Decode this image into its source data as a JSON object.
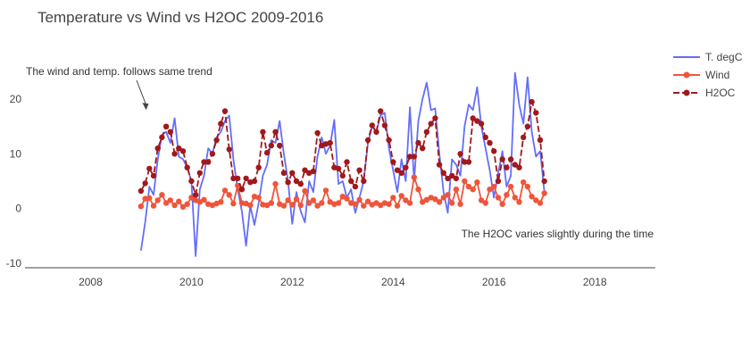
{
  "chart_data": {
    "type": "line",
    "title": "Temperature vs Wind vs H2OC 2009-2016",
    "xlabel": "",
    "ylabel": "",
    "xlim": [
      2006.7,
      2019.2
    ],
    "ylim": [
      -10.5,
      28
    ],
    "x_ticks": [
      2008,
      2010,
      2012,
      2014,
      2016,
      2018
    ],
    "y_ticks": [
      -10,
      0,
      10,
      20
    ],
    "grid": false,
    "legend": "right",
    "x_start": 2009,
    "x_step": 0.08333,
    "annotations": [
      {
        "text": "The wind and temp. follows same trend",
        "x": 2009.1,
        "y": 18.0,
        "arrow": true
      },
      {
        "text": "The H2OC varies slightly during the time",
        "x": 2016.0,
        "y": -5.3,
        "arrow": false
      }
    ],
    "series": [
      {
        "name": "T. degC",
        "color": "#636efa",
        "mode": "lines",
        "values": [
          -7.7,
          -2.5,
          4.0,
          2.5,
          9.0,
          13.5,
          14.0,
          12.0,
          16.5,
          9.5,
          9.0,
          7.5,
          5.0,
          -8.7,
          3.5,
          6.0,
          11.0,
          10.0,
          13.0,
          14.0,
          16.0,
          17.0,
          9.0,
          3.5,
          -0.5,
          -6.8,
          0.5,
          -3.0,
          1.0,
          6.0,
          8.0,
          12.5,
          12.0,
          16.0,
          10.0,
          5.0,
          -2.8,
          3.0,
          -0.5,
          -2.5,
          5.0,
          3.0,
          9.5,
          13.0,
          10.0,
          11.5,
          16.2,
          4.5,
          5.0,
          2.0,
          3.5,
          -0.8,
          2.0,
          5.0,
          12.0,
          15.0,
          14.0,
          17.0,
          17.5,
          11.0,
          7.0,
          3.0,
          9.0,
          5.0,
          18.5,
          5.0,
          16.0,
          20.0,
          23.0,
          18.0,
          18.3,
          10.0,
          3.0,
          -0.8,
          9.0,
          8.0,
          6.0,
          15.0,
          19.0,
          18.0,
          22.2,
          15.0,
          11.0,
          7.0,
          2.0,
          6.5,
          10.5,
          4.0,
          6.0,
          24.8,
          19.0,
          15.5,
          24.0,
          14.0,
          9.5,
          10.5,
          3.0
        ]
      },
      {
        "name": "Wind",
        "color": "#ef553b",
        "mode": "lines+markers",
        "values": [
          0.4,
          1.8,
          1.9,
          0.5,
          1.5,
          2.5,
          1.0,
          1.5,
          0.6,
          1.3,
          0.3,
          0.8,
          2.0,
          1.5,
          1.2,
          1.6,
          0.8,
          0.6,
          0.9,
          1.2,
          3.3,
          2.5,
          0.9,
          4.2,
          1.0,
          0.9,
          0.6,
          2.2,
          2.0,
          0.7,
          0.6,
          1.0,
          4.5,
          0.8,
          0.5,
          1.5,
          0.7,
          1.7,
          0.6,
          3.2,
          1.0,
          1.5,
          0.5,
          1.0,
          3.3,
          1.2,
          0.8,
          1.0,
          2.2,
          1.8,
          1.0,
          0.8,
          1.6,
          0.5,
          1.3,
          0.7,
          1.0,
          0.6,
          1.0,
          0.8,
          2.0,
          0.5,
          2.3,
          1.5,
          1.0,
          5.7,
          3.5,
          1.2,
          1.6,
          2.0,
          1.7,
          1.2,
          2.0,
          2.5,
          1.0,
          3.5,
          0.8,
          5.0,
          4.0,
          3.5,
          4.8,
          1.5,
          1.0,
          3.5,
          4.0,
          2.0,
          0.8,
          2.5,
          4.0,
          2.0,
          1.2,
          4.8,
          4.0,
          2.2,
          1.5,
          1.0,
          2.8
        ]
      },
      {
        "name": "H2OC",
        "color": "#a0191b",
        "mode": "lines+markers",
        "dash": true,
        "values": [
          3.2,
          4.6,
          7.3,
          6.0,
          11.0,
          13.0,
          15.0,
          14.0,
          10.0,
          11.0,
          10.5,
          7.5,
          5.0,
          2.5,
          6.5,
          8.5,
          8.5,
          10.0,
          12.5,
          15.5,
          17.8,
          10.8,
          5.5,
          5.5,
          3.5,
          5.5,
          4.8,
          5.0,
          7.5,
          14.0,
          10.2,
          11.5,
          14.0,
          11.5,
          6.5,
          4.8,
          6.5,
          5.0,
          4.5,
          7.0,
          6.5,
          6.8,
          13.8,
          11.5,
          11.8,
          12.0,
          7.5,
          7.3,
          6.0,
          8.5,
          5.0,
          4.0,
          7.0,
          5.0,
          12.5,
          15.2,
          14.0,
          17.8,
          15.2,
          12.5,
          8.5,
          7.0,
          6.5,
          7.5,
          9.5,
          9.5,
          12.0,
          11.0,
          14.0,
          15.5,
          16.5,
          8.0,
          6.5,
          5.5,
          6.0,
          5.5,
          10.0,
          8.5,
          8.5,
          16.5,
          16.0,
          15.5,
          13.0,
          12.0,
          10.5,
          5.0,
          9.0,
          7.5,
          9.0,
          8.0,
          7.5,
          13.0,
          15.0,
          19.5,
          17.5,
          12.5,
          5.0
        ]
      }
    ]
  }
}
